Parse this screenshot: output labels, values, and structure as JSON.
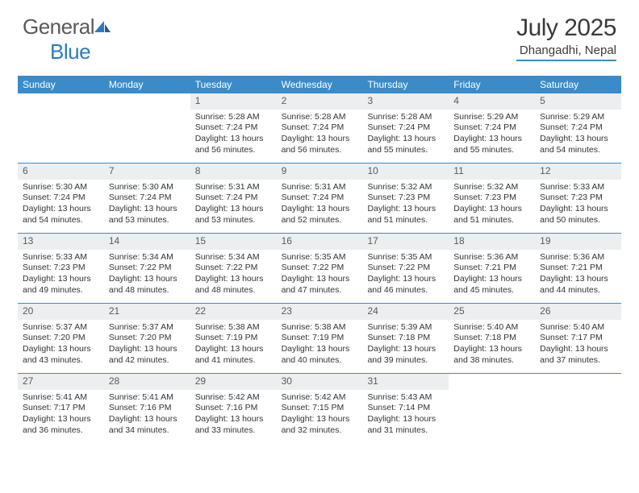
{
  "brand": {
    "name_part1": "General",
    "name_part2": "Blue"
  },
  "title": "July 2025",
  "location": "Dhangadhi, Nepal",
  "colors": {
    "header_blue": "#3b8bc9",
    "daynum_bg": "#eceeef",
    "text": "#333333",
    "brand_gray": "#5a5a5a",
    "brand_blue": "#2b7bbf"
  },
  "weekdays": [
    "Sunday",
    "Monday",
    "Tuesday",
    "Wednesday",
    "Thursday",
    "Friday",
    "Saturday"
  ],
  "first_weekday_index": 2,
  "days": [
    {
      "n": 1,
      "sr": "5:28 AM",
      "ss": "7:24 PM",
      "dl": "13 hours and 56 minutes."
    },
    {
      "n": 2,
      "sr": "5:28 AM",
      "ss": "7:24 PM",
      "dl": "13 hours and 56 minutes."
    },
    {
      "n": 3,
      "sr": "5:28 AM",
      "ss": "7:24 PM",
      "dl": "13 hours and 55 minutes."
    },
    {
      "n": 4,
      "sr": "5:29 AM",
      "ss": "7:24 PM",
      "dl": "13 hours and 55 minutes."
    },
    {
      "n": 5,
      "sr": "5:29 AM",
      "ss": "7:24 PM",
      "dl": "13 hours and 54 minutes."
    },
    {
      "n": 6,
      "sr": "5:30 AM",
      "ss": "7:24 PM",
      "dl": "13 hours and 54 minutes."
    },
    {
      "n": 7,
      "sr": "5:30 AM",
      "ss": "7:24 PM",
      "dl": "13 hours and 53 minutes."
    },
    {
      "n": 8,
      "sr": "5:31 AM",
      "ss": "7:24 PM",
      "dl": "13 hours and 53 minutes."
    },
    {
      "n": 9,
      "sr": "5:31 AM",
      "ss": "7:24 PM",
      "dl": "13 hours and 52 minutes."
    },
    {
      "n": 10,
      "sr": "5:32 AM",
      "ss": "7:23 PM",
      "dl": "13 hours and 51 minutes."
    },
    {
      "n": 11,
      "sr": "5:32 AM",
      "ss": "7:23 PM",
      "dl": "13 hours and 51 minutes."
    },
    {
      "n": 12,
      "sr": "5:33 AM",
      "ss": "7:23 PM",
      "dl": "13 hours and 50 minutes."
    },
    {
      "n": 13,
      "sr": "5:33 AM",
      "ss": "7:23 PM",
      "dl": "13 hours and 49 minutes."
    },
    {
      "n": 14,
      "sr": "5:34 AM",
      "ss": "7:22 PM",
      "dl": "13 hours and 48 minutes."
    },
    {
      "n": 15,
      "sr": "5:34 AM",
      "ss": "7:22 PM",
      "dl": "13 hours and 48 minutes."
    },
    {
      "n": 16,
      "sr": "5:35 AM",
      "ss": "7:22 PM",
      "dl": "13 hours and 47 minutes."
    },
    {
      "n": 17,
      "sr": "5:35 AM",
      "ss": "7:22 PM",
      "dl": "13 hours and 46 minutes."
    },
    {
      "n": 18,
      "sr": "5:36 AM",
      "ss": "7:21 PM",
      "dl": "13 hours and 45 minutes."
    },
    {
      "n": 19,
      "sr": "5:36 AM",
      "ss": "7:21 PM",
      "dl": "13 hours and 44 minutes."
    },
    {
      "n": 20,
      "sr": "5:37 AM",
      "ss": "7:20 PM",
      "dl": "13 hours and 43 minutes."
    },
    {
      "n": 21,
      "sr": "5:37 AM",
      "ss": "7:20 PM",
      "dl": "13 hours and 42 minutes."
    },
    {
      "n": 22,
      "sr": "5:38 AM",
      "ss": "7:19 PM",
      "dl": "13 hours and 41 minutes."
    },
    {
      "n": 23,
      "sr": "5:38 AM",
      "ss": "7:19 PM",
      "dl": "13 hours and 40 minutes."
    },
    {
      "n": 24,
      "sr": "5:39 AM",
      "ss": "7:18 PM",
      "dl": "13 hours and 39 minutes."
    },
    {
      "n": 25,
      "sr": "5:40 AM",
      "ss": "7:18 PM",
      "dl": "13 hours and 38 minutes."
    },
    {
      "n": 26,
      "sr": "5:40 AM",
      "ss": "7:17 PM",
      "dl": "13 hours and 37 minutes."
    },
    {
      "n": 27,
      "sr": "5:41 AM",
      "ss": "7:17 PM",
      "dl": "13 hours and 36 minutes."
    },
    {
      "n": 28,
      "sr": "5:41 AM",
      "ss": "7:16 PM",
      "dl": "13 hours and 34 minutes."
    },
    {
      "n": 29,
      "sr": "5:42 AM",
      "ss": "7:16 PM",
      "dl": "13 hours and 33 minutes."
    },
    {
      "n": 30,
      "sr": "5:42 AM",
      "ss": "7:15 PM",
      "dl": "13 hours and 32 minutes."
    },
    {
      "n": 31,
      "sr": "5:43 AM",
      "ss": "7:14 PM",
      "dl": "13 hours and 31 minutes."
    }
  ],
  "labels": {
    "sunrise": "Sunrise:",
    "sunset": "Sunset:",
    "daylight": "Daylight:"
  }
}
